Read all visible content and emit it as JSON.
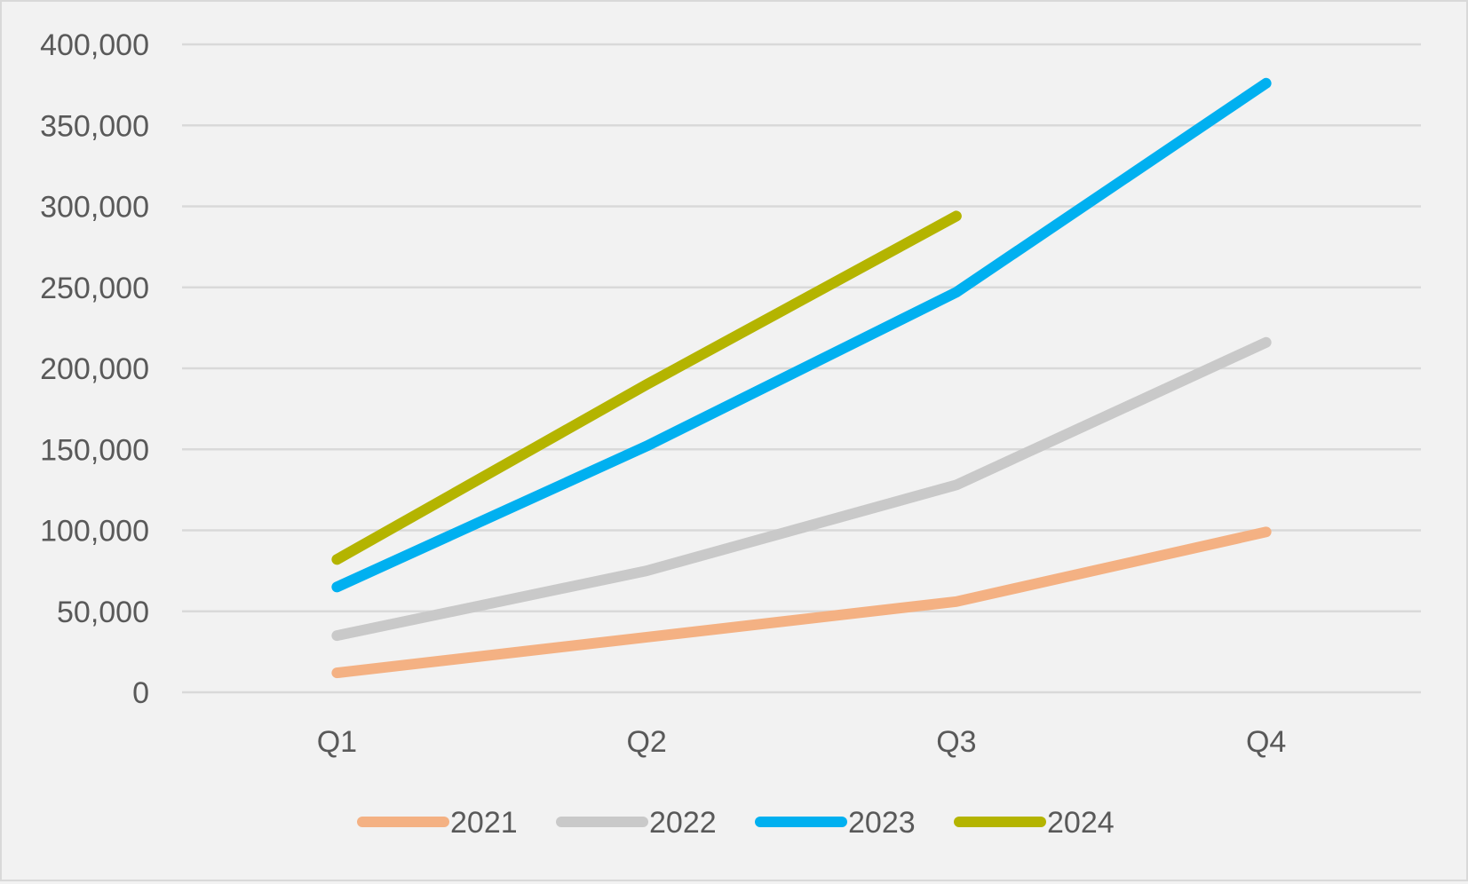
{
  "chart_data": {
    "type": "line",
    "title": "",
    "xlabel": "",
    "ylabel": "",
    "categories": [
      "Q1",
      "Q2",
      "Q3",
      "Q4"
    ],
    "ylim": [
      0,
      400000
    ],
    "yticks": [
      0,
      50000,
      100000,
      150000,
      200000,
      250000,
      300000,
      350000,
      400000
    ],
    "ytick_labels": [
      "0",
      "50,000",
      "100,000",
      "150,000",
      "200,000",
      "250,000",
      "300,000",
      "350,000",
      "400,000"
    ],
    "grid": true,
    "legend_position": "bottom",
    "series": [
      {
        "name": "2021",
        "color": "#F4B183",
        "values": [
          12000,
          34000,
          56000,
          99000
        ]
      },
      {
        "name": "2022",
        "color": "#C9C9C9",
        "values": [
          35000,
          75000,
          128000,
          216000
        ]
      },
      {
        "name": "2023",
        "color": "#00B0F0",
        "values": [
          65000,
          152000,
          247000,
          376000
        ]
      },
      {
        "name": "2024",
        "color": "#B4B400",
        "values": [
          82000,
          190000,
          294000,
          null
        ]
      }
    ]
  }
}
